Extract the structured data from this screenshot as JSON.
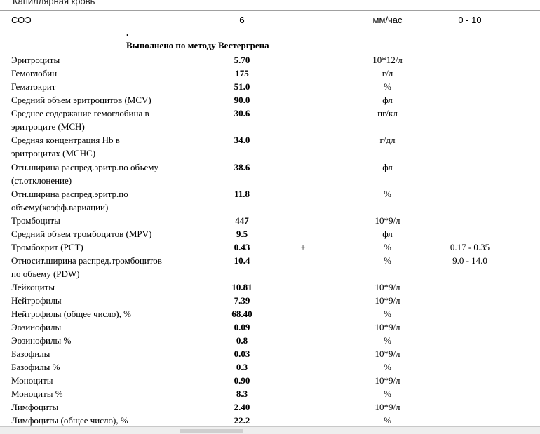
{
  "header_cut": "Капиллярная кровь",
  "esr": {
    "name": "СОЭ",
    "value": "6",
    "unit": "мм/час",
    "ref": "0 - 10"
  },
  "note_marker": ".",
  "note": "Выполнено по методу Вестергрена",
  "rows": [
    {
      "name": [
        "Эритроциты"
      ],
      "value": "5.70",
      "flag": "",
      "unit": "10*12/л",
      "ref": ""
    },
    {
      "name": [
        "Гемоглобин"
      ],
      "value": "175",
      "flag": "",
      "unit": "г/л",
      "ref": ""
    },
    {
      "name": [
        "Гематокрит"
      ],
      "value": "51.0",
      "flag": "",
      "unit": "%",
      "ref": ""
    },
    {
      "name": [
        "Средний объем эритроцитов (MCV)"
      ],
      "value": "90.0",
      "flag": "",
      "unit": "фл",
      "ref": ""
    },
    {
      "name": [
        "Среднее содержание гемоглобина в",
        "эритроците (MCH)"
      ],
      "value": "30.6",
      "flag": "",
      "unit": "пг/кл",
      "ref": ""
    },
    {
      "name": [
        "Средняя концентрация Hb в",
        "эритроцитах (MCHC)"
      ],
      "value": "34.0",
      "flag": "",
      "unit": "г/дл",
      "ref": ""
    },
    {
      "name": [
        "Отн.ширина распред.эритр.по объему",
        "(ст.отклонение)"
      ],
      "value": "38.6",
      "flag": "",
      "unit": "фл",
      "ref": ""
    },
    {
      "name": [
        "Отн.ширина распред.эритр.по",
        "объему(коэфф.вариации)"
      ],
      "value": "11.8",
      "flag": "",
      "unit": "%",
      "ref": ""
    },
    {
      "name": [
        "Тромбоциты"
      ],
      "value": "447",
      "flag": "",
      "unit": "10*9/л",
      "ref": ""
    },
    {
      "name": [
        "Средний объем тромбоцитов (MPV)"
      ],
      "value": "9.5",
      "flag": "",
      "unit": "фл",
      "ref": ""
    },
    {
      "name": [
        "Тромбокрит (PCT)"
      ],
      "value": "0.43",
      "flag": "+",
      "unit": "%",
      "ref": "0.17 - 0.35"
    },
    {
      "name": [
        "Относит.ширина распред.тромбоцитов",
        "по объему (PDW)"
      ],
      "value": "10.4",
      "flag": "",
      "unit": "%",
      "ref": "9.0 - 14.0"
    },
    {
      "name": [
        "Лейкоциты"
      ],
      "value": "10.81",
      "flag": "",
      "unit": "10*9/л",
      "ref": ""
    },
    {
      "name": [
        "Нейтрофилы"
      ],
      "value": "7.39",
      "flag": "",
      "unit": "10*9/л",
      "ref": ""
    },
    {
      "name": [
        "Нейтрофилы (общее число), %"
      ],
      "value": "68.40",
      "flag": "",
      "unit": "%",
      "ref": ""
    },
    {
      "name": [
        "Эозинофилы"
      ],
      "value": "0.09",
      "flag": "",
      "unit": "10*9/л",
      "ref": ""
    },
    {
      "name": [
        "Эозинофилы %"
      ],
      "value": "0.8",
      "flag": "",
      "unit": "%",
      "ref": ""
    },
    {
      "name": [
        "Базофилы"
      ],
      "value": "0.03",
      "flag": "",
      "unit": "10*9/л",
      "ref": ""
    },
    {
      "name": [
        "Базофилы %"
      ],
      "value": "0.3",
      "flag": "",
      "unit": "%",
      "ref": ""
    },
    {
      "name": [
        "Моноциты"
      ],
      "value": "0.90",
      "flag": "",
      "unit": "10*9/л",
      "ref": ""
    },
    {
      "name": [
        "Моноциты %"
      ],
      "value": "8.3",
      "flag": "",
      "unit": "%",
      "ref": ""
    },
    {
      "name": [
        "Лимфоциты"
      ],
      "value": "2.40",
      "flag": "",
      "unit": "10*9/л",
      "ref": ""
    },
    {
      "name": [
        "Лимфоциты (общее число), %"
      ],
      "value": "22.2",
      "flag": "",
      "unit": "%",
      "ref": ""
    }
  ]
}
